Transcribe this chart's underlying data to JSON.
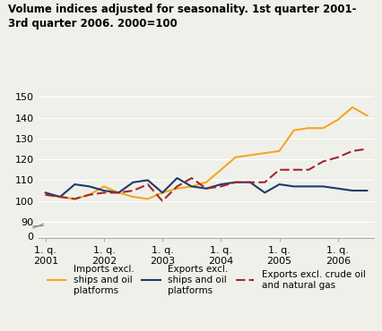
{
  "title": "Volume indices adjusted for seasonality. 1st quarter 2001-\n3rd quarter 2006. 2000=100",
  "xlabels": [
    "1. q.\n2001",
    "1. q.\n2002",
    "1. q.\n2003",
    "1. q.\n2004",
    "1. q.\n2005",
    "1. q.\n2006"
  ],
  "xtick_positions": [
    0,
    4,
    8,
    12,
    16,
    20
  ],
  "imports": [
    103,
    102,
    101,
    103,
    107,
    104,
    102,
    101,
    104,
    106,
    107,
    109,
    115,
    121,
    122,
    123,
    124,
    134,
    135,
    135,
    139,
    145,
    141
  ],
  "exports": [
    104,
    102,
    108,
    107,
    105,
    104,
    109,
    110,
    104,
    111,
    107,
    106,
    108,
    109,
    109,
    104,
    108,
    107,
    107,
    107,
    106,
    105,
    105
  ],
  "exports_excl": [
    103,
    102,
    101,
    103,
    104,
    104,
    105,
    108,
    100,
    107,
    111,
    106,
    107,
    109,
    109,
    109,
    115,
    115,
    115,
    119,
    121,
    124,
    125
  ],
  "imports_color": "#f5a623",
  "exports_color": "#1a3a6b",
  "exports_excl_color": "#a0282a",
  "legend_labels": [
    "Imports excl.\nships and oil\nplatforms",
    "Exports excl.\nships and oil\nplatforms",
    "Exports excl. crude oil\nand natural gas"
  ],
  "background_color": "#f0f0eb",
  "grid_color": "#ffffff",
  "upper_ylim": [
    88,
    152
  ],
  "upper_yticks": [
    90,
    100,
    110,
    120,
    130,
    140,
    150
  ],
  "lower_ylim": [
    -2,
    8
  ],
  "lower_yticks": [
    0
  ]
}
